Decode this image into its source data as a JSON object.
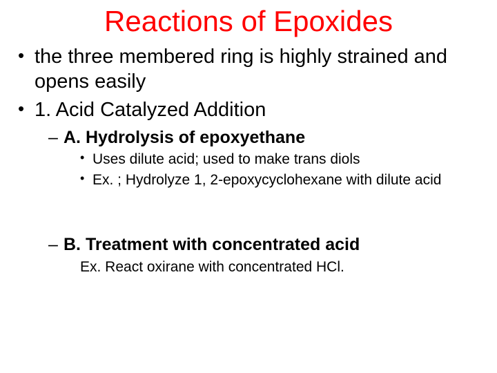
{
  "colors": {
    "title": "#ff0000",
    "body": "#000000",
    "background": "#ffffff"
  },
  "fonts": {
    "family": "Comic Sans MS",
    "title_size_pt": 42,
    "lvl1_size_pt": 29,
    "lvl2_size_pt": 25,
    "lvl3_size_pt": 21,
    "lvl2_weight": "bold"
  },
  "title": "Reactions of Epoxides",
  "bullets": {
    "b1": "the three membered ring is highly strained and opens easily",
    "b2": "1. Acid Catalyzed Addition",
    "b2a": "A. Hydrolysis of epoxyethane",
    "b2a_i": "Uses dilute acid; used to make trans diols",
    "b2a_ii": "Ex. ; Hydrolyze 1, 2-epoxycyclohexane with dilute acid",
    "b2b": "B.  Treatment with concentrated acid",
    "b2b_i": "Ex. React oxirane with concentrated HCl."
  }
}
